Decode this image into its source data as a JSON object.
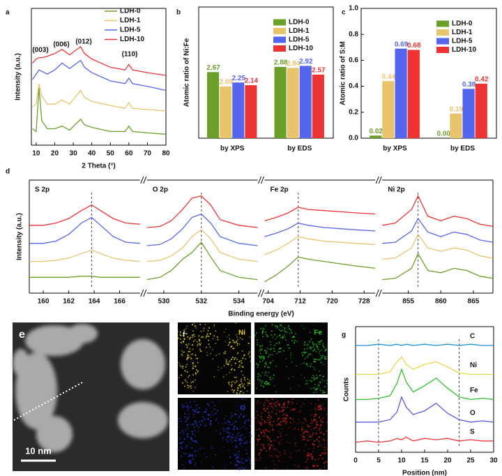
{
  "chart_data": [
    {
      "type": "line",
      "panel_label": "a",
      "xlabel": "2 Theta (°)",
      "ylabel": "Intensity (a.u.)",
      "xlim": [
        7.4,
        80
      ],
      "xticks": [
        10,
        20,
        30,
        40,
        50,
        60,
        70,
        80
      ],
      "ylim": [
        0,
        100
      ],
      "legend": "upper right",
      "annotations": [
        "(003)",
        "(006)",
        "(012)",
        "(110)"
      ],
      "x": [
        8,
        10,
        11.5,
        13,
        16,
        20,
        24,
        28,
        34,
        36,
        40,
        50,
        58,
        60,
        62,
        70,
        80
      ],
      "series": [
        {
          "name": "LDH-0",
          "color": "#6a9f2a",
          "values": [
            12,
            10,
            42,
            18,
            12,
            12,
            14,
            11,
            19,
            15,
            13,
            10,
            10,
            14,
            10,
            9,
            8
          ]
        },
        {
          "name": "LDH-1",
          "color": "#e8c46c",
          "values": [
            28,
            30,
            45,
            36,
            30,
            30,
            33,
            30,
            40,
            35,
            32,
            29,
            27,
            31,
            27,
            26,
            25
          ]
        },
        {
          "name": "LDH-5",
          "color": "#5566ee",
          "values": [
            48,
            52,
            55,
            54,
            52,
            55,
            60,
            56,
            62,
            57,
            53,
            47,
            45,
            49,
            45,
            43,
            40
          ]
        },
        {
          "name": "LDH-10",
          "color": "#ee3333",
          "values": [
            60,
            63,
            64,
            64,
            65,
            67,
            70,
            66,
            72,
            67,
            63,
            57,
            55,
            59,
            55,
            53,
            51
          ]
        }
      ]
    },
    {
      "type": "bar",
      "panel_label": "b",
      "ylabel": "Atomic ratio of Ni:Fe",
      "ylim": [
        0,
        5.3
      ],
      "legend": "upper right",
      "categories": [
        "by XPS",
        "by EDS"
      ],
      "series": [
        {
          "name": "LDH-0",
          "color": "#6a9f2a",
          "values": [
            2.67,
            2.88
          ]
        },
        {
          "name": "LDH-1",
          "color": "#e8c46c",
          "values": [
            2.09,
            2.84
          ]
        },
        {
          "name": "LDH-5",
          "color": "#5566ee",
          "values": [
            2.25,
            2.92
          ]
        },
        {
          "name": "LDH-10",
          "color": "#ee3333",
          "values": [
            2.14,
            2.57
          ]
        }
      ]
    },
    {
      "type": "bar",
      "panel_label": "c",
      "ylabel": "Atomic ratio of S:M",
      "ylim": [
        0,
        1
      ],
      "legend": "upper right",
      "yticks": [
        {
          "value": 0,
          "label": "0.0"
        },
        0.2,
        0.4,
        0.6,
        0.8,
        {
          "value": 1,
          "label": "1.0"
        }
      ],
      "categories": [
        "by XPS",
        "by EDS"
      ],
      "series": [
        {
          "name": "LDH-0",
          "color": "#6a9f2a",
          "values": [
            0.02,
            0
          ],
          "value_labels": [
            "0.02",
            "0.00"
          ]
        },
        {
          "name": "LDH-1",
          "color": "#e8c46c",
          "values": [
            0.44,
            0.19
          ],
          "value_labels": [
            "0.44",
            "0.19"
          ]
        },
        {
          "name": "LDH-5",
          "color": "#5566ee",
          "values": [
            0.69,
            0.38
          ],
          "value_labels": [
            "0.69",
            "0.38"
          ]
        },
        {
          "name": "LDH-10",
          "color": "#ee3333",
          "values": [
            0.68,
            0.42
          ],
          "value_labels": [
            "0.68",
            "0.42"
          ]
        }
      ]
    },
    {
      "type": "line",
      "panel_label": "d",
      "xlabel": "Binding energy (eV)",
      "ylabel": "Intensity (a.u.)",
      "ylim": [
        0,
        100
      ],
      "panels": [
        {
          "title": "S 2p",
          "xlim": [
            158.9,
            167.6
          ],
          "xticks": [
            160,
            162,
            164,
            166
          ],
          "reference_x": [
            163.8
          ],
          "x": [
            158.9,
            160,
            161,
            162,
            163,
            163.8,
            164.5,
            165.5,
            166.5,
            167.6
          ],
          "series": [
            {
              "color": "#6a9f2a",
              "values": [
                14,
                14,
                14,
                14,
                15,
                15,
                14,
                14,
                14,
                14
              ]
            },
            {
              "color": "#e8c46c",
              "values": [
                28,
                28,
                29,
                31,
                35,
                38,
                35,
                31,
                29,
                28
              ]
            },
            {
              "color": "#5566ee",
              "values": [
                44,
                44,
                46,
                52,
                62,
                67,
                60,
                50,
                45,
                44
              ]
            },
            {
              "color": "#ee3333",
              "values": [
                60,
                60,
                62,
                66,
                73,
                78,
                73,
                66,
                62,
                61
              ]
            }
          ]
        },
        {
          "title": "O 2p",
          "xlim": [
            529.1,
            535
          ],
          "xticks": [
            530,
            532,
            534
          ],
          "reference_x": [
            532
          ],
          "x": [
            529.1,
            529.8,
            530.4,
            531,
            531.5,
            532,
            532.5,
            533,
            534,
            535
          ],
          "series": [
            {
              "color": "#6a9f2a",
              "values": [
                12,
                14,
                20,
                30,
                36,
                45,
                32,
                20,
                14,
                12
              ]
            },
            {
              "color": "#e8c46c",
              "values": [
                28,
                29,
                33,
                40,
                50,
                56,
                48,
                36,
                30,
                28
              ]
            },
            {
              "color": "#5566ee",
              "values": [
                42,
                43,
                48,
                57,
                67,
                70,
                62,
                50,
                44,
                42
              ]
            },
            {
              "color": "#ee3333",
              "values": [
                58,
                59,
                64,
                74,
                84,
                86,
                78,
                65,
                60,
                58
              ]
            }
          ]
        },
        {
          "title": "Fe 2p",
          "xlim": [
            703.1,
            730.8
          ],
          "xticks": [
            704,
            712,
            720,
            728
          ],
          "reference_x": [
            711.5
          ],
          "x": [
            703.1,
            706,
            709,
            711.5,
            714,
            718,
            722,
            726,
            730.8
          ],
          "series": [
            {
              "color": "#6a9f2a",
              "values": [
                10,
                16,
                24,
                32,
                30,
                28,
                26,
                24,
                22
              ]
            },
            {
              "color": "#e8c46c",
              "values": [
                34,
                38,
                44,
                50,
                48,
                46,
                45,
                44,
                43
              ]
            },
            {
              "color": "#5566ee",
              "values": [
                50,
                53,
                57,
                62,
                60,
                58,
                57,
                56,
                55
              ]
            },
            {
              "color": "#ee3333",
              "values": [
                64,
                67,
                71,
                76,
                74,
                73,
                72,
                71,
                70
              ]
            }
          ]
        },
        {
          "title": "Ni 2p",
          "xlim": [
            851,
            868
          ],
          "xticks": [
            855,
            860,
            865
          ],
          "reference_x": [
            856.5
          ],
          "x": [
            851,
            853,
            855.5,
            856.5,
            858,
            860,
            862,
            864,
            866,
            868
          ],
          "series": [
            {
              "color": "#6a9f2a",
              "values": [
                12,
                13,
                22,
                35,
                20,
                18,
                22,
                20,
                15,
                13
              ]
            },
            {
              "color": "#e8c46c",
              "values": [
                30,
                31,
                40,
                52,
                40,
                37,
                40,
                38,
                33,
                31
              ]
            },
            {
              "color": "#5566ee",
              "values": [
                44,
                45,
                55,
                66,
                54,
                50,
                54,
                52,
                47,
                45
              ]
            },
            {
              "color": "#ee3333",
              "values": [
                60,
                62,
                74,
                86,
                68,
                64,
                68,
                66,
                61,
                59
              ]
            }
          ]
        }
      ]
    },
    {
      "type": "line",
      "panel_label": "g",
      "xlabel": "Position (nm)",
      "ylabel": "Counts",
      "xlim": [
        0,
        30
      ],
      "xticks": [
        0,
        5,
        10,
        15,
        20,
        25,
        30
      ],
      "ylim": [
        0,
        100
      ],
      "legend": "inline",
      "reference_x": [
        5,
        22.5
      ],
      "x": [
        0,
        2.5,
        5,
        7.5,
        9,
        10,
        11,
        12.5,
        15,
        17.5,
        20,
        22.5,
        25,
        27.5,
        30
      ],
      "series": [
        {
          "name": "C",
          "color": "#1f8fd6",
          "values": [
            85,
            85,
            86,
            85,
            86,
            85,
            86,
            85,
            86,
            85,
            86,
            85,
            86,
            85,
            85
          ]
        },
        {
          "name": "Ni",
          "color": "#e8d84a",
          "values": [
            62,
            62,
            62,
            64,
            72,
            76,
            70,
            66,
            70,
            72,
            68,
            63,
            62,
            62,
            62
          ]
        },
        {
          "name": "Fe",
          "color": "#2fc02f",
          "values": [
            42,
            42,
            43,
            45,
            55,
            66,
            56,
            48,
            53,
            59,
            51,
            44,
            42,
            43,
            42
          ]
        },
        {
          "name": "O",
          "color": "#5a5ae8",
          "values": [
            24,
            24,
            24,
            26,
            32,
            44,
            36,
            30,
            33,
            39,
            31,
            26,
            24,
            25,
            24
          ]
        },
        {
          "name": "S",
          "color": "#e83a3a",
          "values": [
            8,
            9,
            8,
            9,
            11,
            10,
            12,
            9,
            11,
            10,
            11,
            9,
            10,
            9,
            9
          ]
        }
      ]
    }
  ],
  "micrographs": {
    "e": {
      "panel_label": "e",
      "scale_bar": "10 nm"
    },
    "f": {
      "panel_label": "f",
      "maps": [
        {
          "element": "Ni",
          "color": "#e6d21e"
        },
        {
          "element": "Fe",
          "color": "#22c022"
        },
        {
          "element": "O",
          "color": "#2a3ae6"
        },
        {
          "element": "S",
          "color": "#e02222"
        }
      ]
    }
  }
}
